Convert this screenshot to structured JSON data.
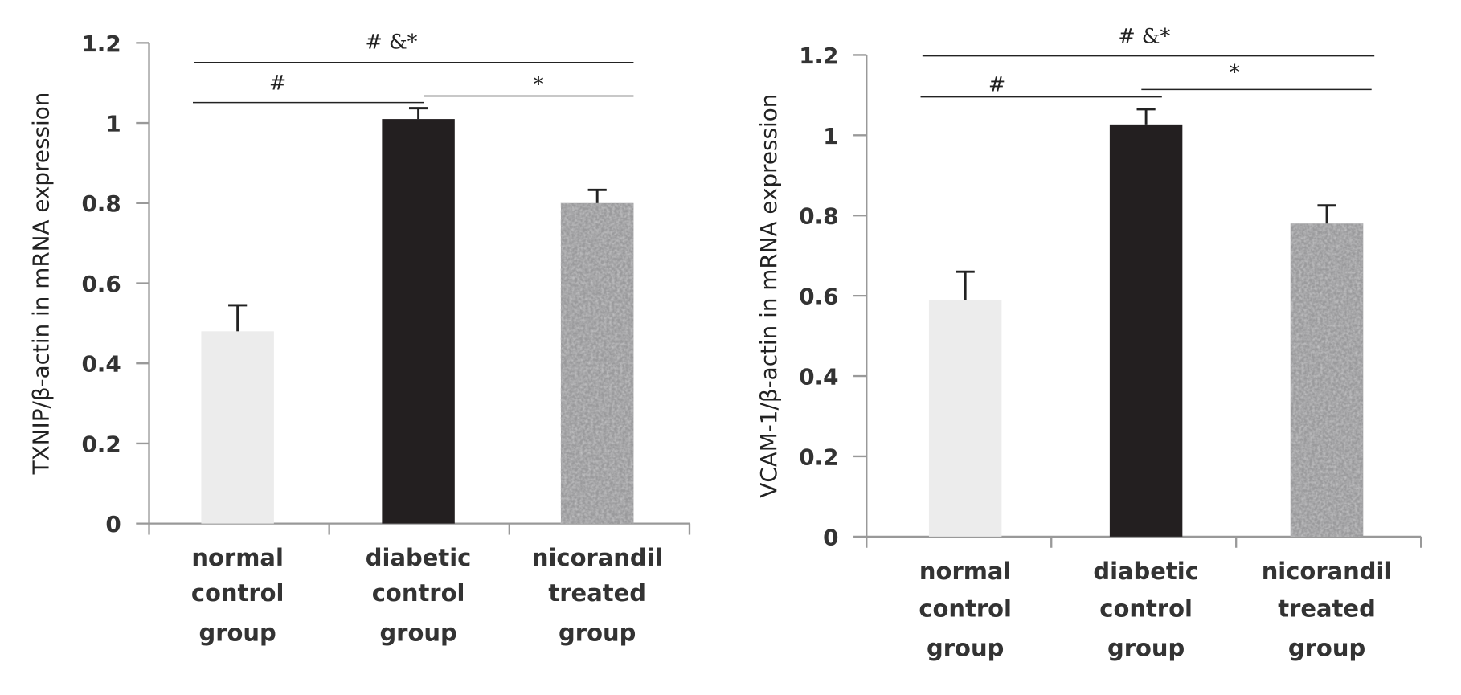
{
  "chart_data": [
    {
      "type": "bar",
      "title": "",
      "xlabel": "",
      "ylabel": "TXNIP/β-actin in mRNA expression",
      "ylim": [
        0,
        1.2
      ],
      "yticks": [
        "0",
        "0.2",
        "0.4",
        "0.6",
        "0.8",
        "1",
        "1.2"
      ],
      "categories": [
        [
          "normal",
          "control",
          "group"
        ],
        [
          "diabetic",
          "control",
          "group"
        ],
        [
          "nicorandil",
          "treated",
          "group"
        ]
      ],
      "values": [
        0.48,
        1.01,
        0.8
      ],
      "errors": [
        0.065,
        0.027,
        0.033
      ],
      "fills": [
        "#ececec",
        "#231f20",
        "pattern"
      ],
      "significance": [
        {
          "from": 0,
          "to": 2,
          "label": "#  &*"
        },
        {
          "from": 0,
          "to": 1,
          "label": "#"
        },
        {
          "from": 1,
          "to": 2,
          "label": "*"
        }
      ]
    },
    {
      "type": "bar",
      "title": "",
      "xlabel": "",
      "ylabel": "VCAM-1/β-actin in mRNA expression",
      "ylim": [
        0,
        1.2
      ],
      "yticks": [
        "0",
        "0.2",
        "0.4",
        "0.6",
        "0.8",
        "1",
        "1.2"
      ],
      "categories": [
        [
          "normal",
          "control",
          "group"
        ],
        [
          "diabetic",
          "control",
          "group"
        ],
        [
          "nicorandil",
          "treated",
          "group"
        ]
      ],
      "values": [
        0.59,
        1.027,
        0.78
      ],
      "errors": [
        0.07,
        0.038,
        0.045
      ],
      "fills": [
        "#ececec",
        "#231f20",
        "pattern"
      ],
      "significance": [
        {
          "from": 0,
          "to": 2,
          "label": "#  &*"
        },
        {
          "from": 0,
          "to": 1,
          "label": "#"
        },
        {
          "from": 1,
          "to": 2,
          "label": "*"
        }
      ]
    }
  ]
}
